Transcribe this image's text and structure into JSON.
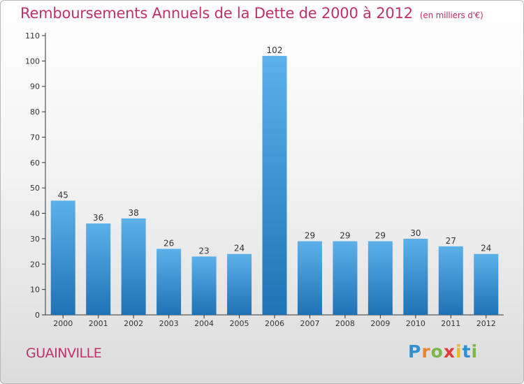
{
  "header": {
    "title": "Remboursements Annuels de la Dette de 2000 à 2012",
    "unit": "(en milliers d'€)"
  },
  "footer": {
    "commune": "GUAINVILLE",
    "logo": "Proxiti"
  },
  "colors": {
    "title": "#c0306a",
    "bar_top": "#5cb1ea",
    "bar_bottom": "#1f72b4",
    "axis": "#333333"
  },
  "chart_data": {
    "type": "bar",
    "categories": [
      "2000",
      "2001",
      "2002",
      "2003",
      "2004",
      "2005",
      "2006",
      "2007",
      "2008",
      "2009",
      "2010",
      "2011",
      "2012"
    ],
    "values": [
      45,
      36,
      38,
      26,
      23,
      24,
      102,
      29,
      29,
      29,
      30,
      27,
      24
    ],
    "ylim": [
      0,
      110
    ],
    "yticks": [
      0,
      10,
      20,
      30,
      40,
      50,
      60,
      70,
      80,
      90,
      100,
      110
    ],
    "grid": false,
    "data_labels": true
  }
}
